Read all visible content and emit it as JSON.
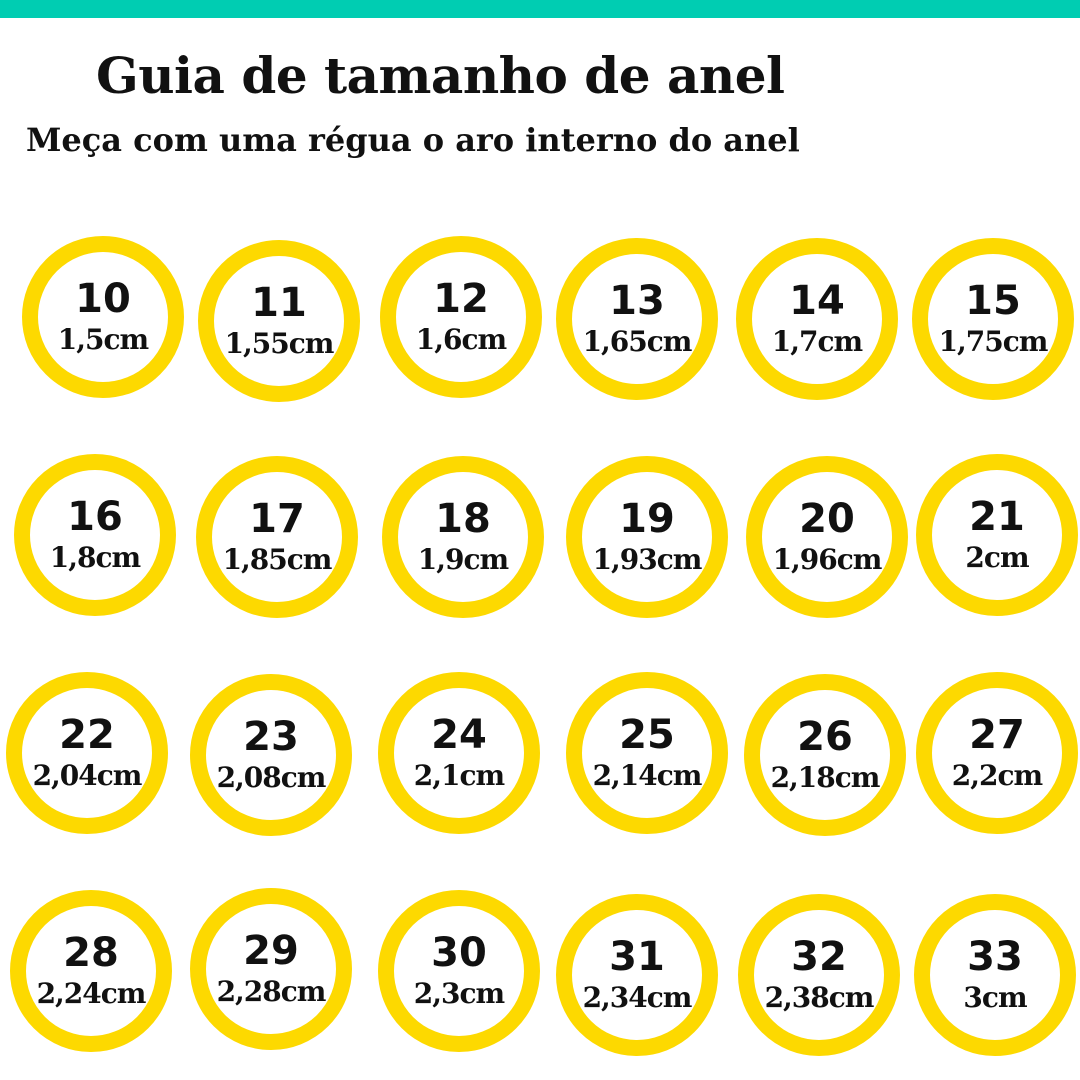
{
  "header": {
    "accent_color": "#00cdb2",
    "title": "Guia de tamanho de anel",
    "subtitle": "Meça com uma régua o aro interno do anel"
  },
  "ring_color": "#fdd900",
  "rings": [
    {
      "size": "10",
      "diameter": "1,5cm"
    },
    {
      "size": "11",
      "diameter": "1,55cm"
    },
    {
      "size": "12",
      "diameter": "1,6cm"
    },
    {
      "size": "13",
      "diameter": "1,65cm"
    },
    {
      "size": "14",
      "diameter": "1,7cm"
    },
    {
      "size": "15",
      "diameter": "1,75cm"
    },
    {
      "size": "16",
      "diameter": "1,8cm"
    },
    {
      "size": "17",
      "diameter": "1,85cm"
    },
    {
      "size": "18",
      "diameter": "1,9cm"
    },
    {
      "size": "19",
      "diameter": "1,93cm"
    },
    {
      "size": "20",
      "diameter": "1,96cm"
    },
    {
      "size": "21",
      "diameter": "2cm"
    },
    {
      "size": "22",
      "diameter": "2,04cm"
    },
    {
      "size": "23",
      "diameter": "2,08cm"
    },
    {
      "size": "24",
      "diameter": "2,1cm"
    },
    {
      "size": "25",
      "diameter": "2,14cm"
    },
    {
      "size": "26",
      "diameter": "2,18cm"
    },
    {
      "size": "27",
      "diameter": "2,2cm"
    },
    {
      "size": "28",
      "diameter": "2,24cm"
    },
    {
      "size": "29",
      "diameter": "2,28cm"
    },
    {
      "size": "30",
      "diameter": "2,3cm"
    },
    {
      "size": "31",
      "diameter": "2,34cm"
    },
    {
      "size": "32",
      "diameter": "2,38cm"
    },
    {
      "size": "33",
      "diameter": "3cm"
    }
  ]
}
